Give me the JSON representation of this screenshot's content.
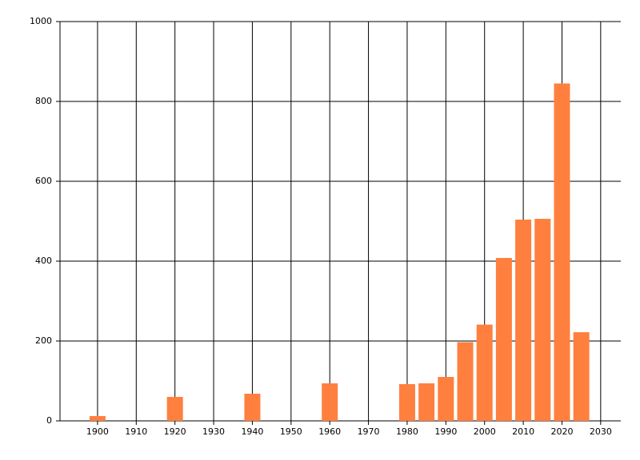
{
  "chart_data": {
    "type": "bar",
    "x": [
      1900,
      1920,
      1940,
      1960,
      1980,
      1985,
      1990,
      1995,
      2000,
      2005,
      2010,
      2015,
      2020,
      2025
    ],
    "values": [
      12,
      60,
      68,
      94,
      92,
      94,
      110,
      197,
      241,
      408,
      504,
      506,
      845,
      222
    ],
    "color": "#ff7f3f",
    "xlim": [
      1890.3,
      2035.2
    ],
    "xticks": [
      1900,
      1910,
      1920,
      1930,
      1940,
      1950,
      1960,
      1970,
      1980,
      1990,
      2000,
      2010,
      2020,
      2030
    ],
    "ylim": [
      0,
      1000
    ],
    "yticks": [
      0,
      200,
      400,
      600,
      800,
      1000
    ],
    "grid": true
  }
}
